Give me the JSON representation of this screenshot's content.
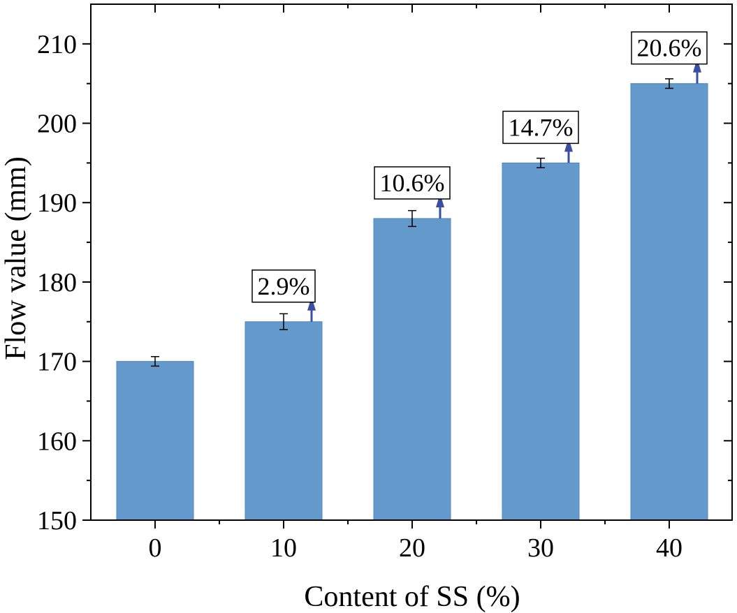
{
  "chart_data": {
    "type": "bar",
    "title": "",
    "xlabel": "Content of SS (%)",
    "ylabel": "Flow value (mm)",
    "categories": [
      "0",
      "10",
      "20",
      "30",
      "40"
    ],
    "values": [
      170,
      175,
      188,
      195,
      205
    ],
    "errors": [
      0.6,
      1.0,
      1.0,
      0.6,
      0.6
    ],
    "annotations": [
      "",
      "2.9%",
      "10.6%",
      "14.7%",
      "20.6%"
    ],
    "ylim": [
      150,
      215
    ],
    "yticks": [
      150,
      160,
      170,
      180,
      190,
      200,
      210
    ],
    "grid": false,
    "colors": {
      "bar": "#6399cb",
      "arrow": "#3a4fa3"
    }
  }
}
